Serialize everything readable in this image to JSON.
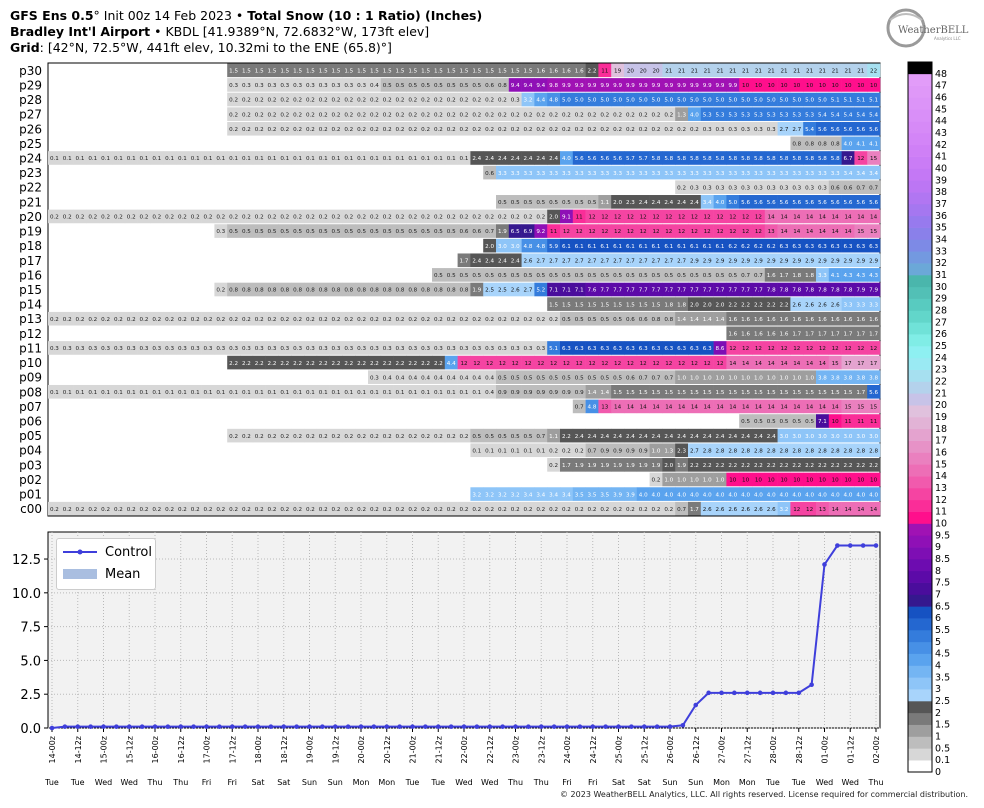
{
  "header": {
    "line1_prefix": "GFS Ens 0.5",
    "line1_deg": "°",
    "line1_init": " Init 00z 14 Feb 2023 • ",
    "line1_bold": "Total Snow (10 : 1 Ratio) (Inches)",
    "line2_bold": "Bradley Int'l Airport",
    "line2_rest": " • KBDL [41.9389°N, 72.6832°W, 173ft elev]",
    "line3_bold": "Grid",
    "line3_rest": ": [42°N, 72.5°W, 441ft elev, 10.32mi to the ENE (65.8)°]"
  },
  "logo": {
    "text": "WeatherBELL",
    "sub": "Analytics LLC"
  },
  "copyright": "© 2023 WeatherBELL Analytics, LLC. All rights reserved. License required for commercial distribution.",
  "colors": {
    "control": "#3f3fdb",
    "mean": "#a9bee0",
    "grid_bg": "#f2f2f2"
  },
  "chart_data": [
    {
      "type": "heatmap",
      "description_rows": "ensemble members",
      "rows": [
        "p30",
        "p29",
        "p28",
        "p27",
        "p26",
        "p25",
        "p24",
        "p23",
        "p22",
        "p21",
        "p20",
        "p19",
        "p18",
        "p17",
        "p16",
        "p15",
        "p14",
        "p13",
        "p12",
        "p11",
        "p10",
        "p09",
        "p08",
        "p07",
        "p06",
        "p05",
        "p04",
        "p03",
        "p02",
        "p01",
        "c00"
      ],
      "n_times": 65,
      "members": {
        "p30": [
          [
            14,
            1.5
          ],
          [
            38,
            1.6
          ],
          [
            42,
            2.2
          ],
          [
            43,
            11
          ],
          [
            44,
            19
          ],
          [
            45,
            20
          ],
          [
            48,
            21
          ],
          [
            64,
            22
          ]
        ],
        "p29": [
          [
            14,
            0.3
          ],
          [
            25,
            0.4
          ],
          [
            26,
            0.5
          ],
          [
            34,
            0.6
          ],
          [
            35,
            0.8
          ],
          [
            36,
            9.4
          ],
          [
            39,
            9.8
          ],
          [
            40,
            9.9
          ],
          [
            54,
            10
          ]
        ],
        "p28": [
          [
            14,
            0.2
          ],
          [
            36,
            0.3
          ],
          [
            37,
            3.2
          ],
          [
            38,
            4.4
          ],
          [
            39,
            4.8
          ],
          [
            40,
            5.0
          ],
          [
            61,
            5.1
          ]
        ],
        "p27": [
          [
            14,
            0.2
          ],
          [
            49,
            1.3
          ],
          [
            50,
            4.0
          ],
          [
            51,
            5.3
          ],
          [
            60,
            5.4
          ]
        ],
        "p26": [
          [
            14,
            0.2
          ],
          [
            51,
            0.3
          ],
          [
            57,
            2.7
          ],
          [
            59,
            5.4
          ],
          [
            60,
            5.6
          ]
        ],
        "p25": [
          [
            58,
            0.8
          ],
          [
            62,
            4.0
          ],
          [
            63,
            4.1
          ]
        ],
        "p24": [
          [
            0,
            0.1
          ],
          [
            33,
            2.4
          ],
          [
            40,
            4.0
          ],
          [
            41,
            5.6
          ],
          [
            45,
            5.7
          ],
          [
            47,
            5.8
          ],
          [
            62,
            6.7
          ],
          [
            63,
            12
          ],
          [
            64,
            15
          ]
        ],
        "p23": [
          [
            34,
            0.6
          ],
          [
            35,
            3.3
          ],
          [
            62,
            3.4
          ]
        ],
        "p22": [
          [
            49,
            0.2
          ],
          [
            50,
            0.3
          ],
          [
            61,
            0.6
          ],
          [
            63,
            0.7
          ]
        ],
        "p21": [
          [
            35,
            0.5
          ],
          [
            43,
            1.1
          ],
          [
            44,
            2.0
          ],
          [
            45,
            2.3
          ],
          [
            46,
            2.4
          ],
          [
            49,
            2.4
          ],
          [
            51,
            3.4
          ],
          [
            52,
            4.0
          ],
          [
            53,
            5.0
          ],
          [
            54,
            5.6
          ]
        ],
        "p20": [
          [
            0,
            0.2
          ],
          [
            39,
            2.0
          ],
          [
            40,
            9.1
          ],
          [
            41,
            11
          ],
          [
            42,
            12
          ],
          [
            56,
            14
          ]
        ],
        "p19": [
          [
            13,
            0.3
          ],
          [
            14,
            0.5
          ],
          [
            32,
            0.6
          ],
          [
            34,
            0.7
          ],
          [
            35,
            1.9
          ],
          [
            36,
            6.5
          ],
          [
            37,
            6.9
          ],
          [
            38,
            9.2
          ],
          [
            39,
            11
          ],
          [
            40,
            12
          ],
          [
            56,
            13
          ],
          [
            57,
            14
          ],
          [
            63,
            15
          ]
        ],
        "p18": [
          [
            34,
            2.0
          ],
          [
            35,
            3.0
          ],
          [
            37,
            4.8
          ],
          [
            39,
            5.9
          ],
          [
            40,
            6.1
          ],
          [
            53,
            6.2
          ],
          [
            57,
            6.3
          ]
        ],
        "p17": [
          [
            32,
            1.7
          ],
          [
            33,
            2.4
          ],
          [
            37,
            2.6
          ],
          [
            38,
            2.7
          ],
          [
            50,
            2.9
          ]
        ],
        "p16": [
          [
            30,
            0.5
          ],
          [
            54,
            0.7
          ],
          [
            56,
            1.6
          ],
          [
            57,
            1.7
          ],
          [
            58,
            1.8
          ],
          [
            60,
            3.3
          ],
          [
            61,
            4.1
          ],
          [
            62,
            4.3
          ]
        ],
        "p15": [
          [
            13,
            0.2
          ],
          [
            14,
            0.8
          ],
          [
            33,
            1.9
          ],
          [
            34,
            2.5
          ],
          [
            35,
            2.5
          ],
          [
            36,
            2.6
          ],
          [
            37,
            2.7
          ],
          [
            38,
            5.2
          ],
          [
            39,
            7.1
          ],
          [
            42,
            7.6
          ],
          [
            43,
            7.7
          ],
          [
            56,
            7.8
          ],
          [
            63,
            7.9
          ]
        ],
        "p14": [
          [
            39,
            1.5
          ],
          [
            48,
            1.8
          ],
          [
            50,
            2.0
          ],
          [
            53,
            2.2
          ],
          [
            58,
            2.6
          ],
          [
            62,
            3.3
          ]
        ],
        "p13": [
          [
            0,
            0.2
          ],
          [
            40,
            0.5
          ],
          [
            45,
            0.6
          ],
          [
            47,
            0.8
          ],
          [
            49,
            1.4
          ],
          [
            53,
            1.6
          ]
        ],
        "p12": [
          [
            53,
            1.6
          ],
          [
            58,
            1.7
          ]
        ],
        "p11": [
          [
            0,
            0.3
          ],
          [
            39,
            5.1
          ],
          [
            40,
            6.3
          ],
          [
            52,
            8.6
          ],
          [
            53,
            12
          ]
        ],
        "p10": [
          [
            14,
            2.2
          ],
          [
            31,
            4.4
          ],
          [
            32,
            12
          ],
          [
            53,
            14
          ],
          [
            61,
            15
          ],
          [
            62,
            17
          ]
        ],
        "p09": [
          [
            25,
            0.3
          ],
          [
            26,
            0.4
          ],
          [
            35,
            0.5
          ],
          [
            45,
            0.6
          ],
          [
            46,
            0.7
          ],
          [
            49,
            1.0
          ],
          [
            52,
            1.0
          ],
          [
            60,
            3.8
          ]
        ],
        "p08": [
          [
            0,
            0.1
          ],
          [
            34,
            0.4
          ],
          [
            35,
            0.9
          ],
          [
            42,
            1.4
          ],
          [
            44,
            1.5
          ],
          [
            63,
            1.7
          ],
          [
            64,
            5.6
          ]
        ],
        "p07": [
          [
            41,
            0.7
          ],
          [
            42,
            4.8
          ],
          [
            43,
            13
          ],
          [
            44,
            14
          ],
          [
            62,
            15
          ]
        ],
        "p06": [
          [
            54,
            0.5
          ],
          [
            59,
            0.5
          ],
          [
            60,
            7.1
          ],
          [
            61,
            10
          ],
          [
            62,
            11
          ]
        ],
        "p05": [
          [
            14,
            0.2
          ],
          [
            33,
            0.5
          ],
          [
            38,
            0.7
          ],
          [
            39,
            1.1
          ],
          [
            40,
            2.2
          ],
          [
            41,
            2.4
          ],
          [
            57,
            3.0
          ]
        ],
        "p04": [
          [
            33,
            0.1
          ],
          [
            39,
            0.2
          ],
          [
            42,
            0.7
          ],
          [
            43,
            0.9
          ],
          [
            47,
            1.0
          ],
          [
            48,
            1.3
          ],
          [
            49,
            2.3
          ],
          [
            50,
            2.7
          ],
          [
            51,
            2.8
          ]
        ],
        "p03": [
          [
            39,
            0.2
          ],
          [
            40,
            1.7
          ],
          [
            41,
            1.9
          ],
          [
            48,
            2.0
          ],
          [
            49,
            1.9
          ],
          [
            50,
            2.2
          ]
        ],
        "p02": [
          [
            47,
            0.2
          ],
          [
            48,
            1.0
          ],
          [
            53,
            10
          ]
        ],
        "p01": [
          [
            33,
            3.2
          ],
          [
            37,
            3.4
          ],
          [
            41,
            3.5
          ],
          [
            44,
            3.9
          ],
          [
            46,
            4.0
          ],
          [
            51,
            4.0
          ],
          [
            52,
            4.0
          ]
        ],
        "c00": [
          [
            0,
            0.2
          ],
          [
            49,
            0.7
          ],
          [
            50,
            1.7
          ],
          [
            51,
            2.6
          ],
          [
            57,
            3.2
          ],
          [
            58,
            12
          ],
          [
            59,
            12
          ],
          [
            60,
            13
          ],
          [
            61,
            14
          ]
        ]
      }
    },
    {
      "type": "line",
      "x_ticks": [
        "14-00z",
        "14-12z",
        "15-00z",
        "15-12z",
        "16-00z",
        "16-12z",
        "17-00z",
        "17-12z",
        "18-00z",
        "18-12z",
        "19-00z",
        "19-12z",
        "20-00z",
        "20-12z",
        "21-00z",
        "21-12z",
        "22-00z",
        "22-12z",
        "23-00z",
        "23-12z",
        "24-00z",
        "24-12z",
        "25-00z",
        "25-12z",
        "26-00z",
        "26-12z",
        "27-00z",
        "27-12z",
        "28-00z",
        "28-12z",
        "01-00z",
        "01-12z",
        "02-00z"
      ],
      "day_labels": [
        "Tue",
        "Tue",
        "Wed",
        "Wed",
        "Thu",
        "Thu",
        "Fri",
        "Fri",
        "Sat",
        "Sat",
        "Sun",
        "Sun",
        "Mon",
        "Mon",
        "Tue",
        "Tue",
        "Wed",
        "Wed",
        "Thu",
        "Thu",
        "Fri",
        "Fri",
        "Sat",
        "Sat",
        "Sun",
        "Sun",
        "Mon",
        "Mon",
        "Tue",
        "Tue",
        "Wed",
        "Wed",
        "Thu"
      ],
      "ylim": [
        0,
        14.5
      ],
      "yticks": [
        0.0,
        2.5,
        5.0,
        7.5,
        10.0,
        12.5
      ],
      "series": [
        {
          "name": "Control",
          "values": [
            0,
            0.1,
            0.1,
            0.1,
            0.1,
            0.1,
            0.1,
            0.1,
            0.1,
            0.1,
            0.1,
            0.1,
            0.1,
            0.1,
            0.1,
            0.1,
            0.1,
            0.1,
            0.1,
            0.1,
            0.1,
            0.1,
            0.1,
            0.1,
            0.1,
            0.1,
            0.1,
            0.1,
            0.1,
            0.1,
            0.1,
            0.1,
            0.1,
            0.1,
            0.1,
            0.1,
            0.1,
            0.1,
            0.1,
            0.1,
            0.1,
            0.1,
            0.1,
            0.1,
            0.1,
            0.1,
            0.1,
            0.1,
            0.1,
            0.2,
            1.7,
            2.6,
            2.6,
            2.6,
            2.6,
            2.6,
            2.6,
            2.6,
            2.6,
            3.2,
            12.1,
            13.5,
            13.5,
            13.5,
            13.5
          ]
        },
        {
          "name": "Mean",
          "type": "bar",
          "values": [
            0,
            0,
            0,
            0,
            0,
            0,
            0,
            0,
            0,
            0,
            0,
            0,
            0,
            0,
            0,
            0,
            0,
            0,
            0,
            0,
            0,
            0,
            0,
            0,
            0,
            0,
            0,
            0,
            0,
            0,
            0,
            0,
            0,
            0,
            0,
            0,
            0,
            0,
            0,
            0,
            0,
            0,
            0,
            0,
            0,
            0,
            0,
            0,
            0,
            0,
            0,
            0,
            0,
            0,
            0,
            0,
            0,
            0,
            0,
            0,
            0,
            0,
            0,
            0,
            0
          ]
        }
      ]
    }
  ],
  "colorbar": {
    "labels": [
      "0",
      "0.1",
      "0.5",
      "1",
      "1.5",
      "2",
      "2.5",
      "3",
      "3.5",
      "4",
      "4.5",
      "5",
      "5.5",
      "6",
      "6.5",
      "7",
      "7.5",
      "8",
      "8.5",
      "9",
      "9.5",
      "10",
      "11",
      "12",
      "13",
      "14",
      "15",
      "16",
      "17",
      "18",
      "19",
      "20",
      "21",
      "22",
      "23",
      "24",
      "25",
      "26",
      "27",
      "28",
      "29",
      "30",
      "31",
      "32",
      "33",
      "34",
      "35",
      "36",
      "37",
      "38",
      "39",
      "40",
      "41",
      "42",
      "43",
      "44",
      "45",
      "46",
      "47",
      "48"
    ]
  }
}
